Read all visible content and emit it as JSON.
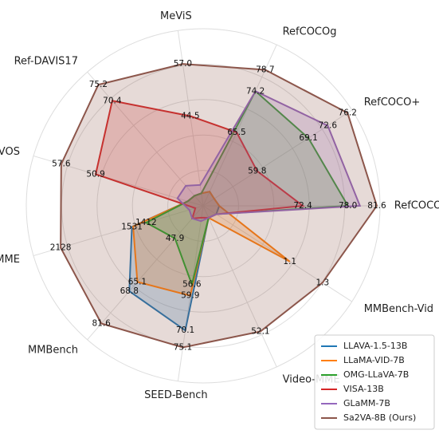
{
  "chart_data": {
    "type": "radar",
    "axes": [
      {
        "name": "RefCOCO",
        "lim": [
          60,
          82
        ]
      },
      {
        "name": "RefCOCO+",
        "lim": [
          50,
          77
        ]
      },
      {
        "name": "RefCOCOg",
        "lim": [
          50,
          84
        ]
      },
      {
        "name": "MeViS",
        "lim": [
          23,
          65
        ]
      },
      {
        "name": "Ref-DAVIS17",
        "lim": [
          39,
          79
        ]
      },
      {
        "name": "ReVOS",
        "lim": [
          30,
          63
        ]
      },
      {
        "name": "MME",
        "lim": [
          934,
          2356
        ]
      },
      {
        "name": "MMBench",
        "lim": [
          35,
          88
        ]
      },
      {
        "name": "SEED-Bench",
        "lim": [
          33.5,
          85
        ]
      },
      {
        "name": "Video-MME",
        "lim": [
          10,
          64
        ]
      },
      {
        "name": "MMBench-Vid",
        "lim": [
          0.57,
          1.48
        ]
      }
    ],
    "series": [
      {
        "name": "LLAVA-1.5-13B",
        "color": "#1f77b4",
        "values": [
          62,
          52,
          53,
          26,
          42,
          33,
          1531,
          68.8,
          70.1,
          14,
          0.65
        ],
        "value_labels": [
          null,
          null,
          null,
          null,
          null,
          null,
          "1531",
          "68.8",
          "70.1",
          null,
          null
        ]
      },
      {
        "name": "LLaMA-VID-7B",
        "color": "#ff7f0e",
        "values": [
          62,
          52,
          53,
          26,
          42,
          33,
          1521,
          65.1,
          59.9,
          14,
          1.1
        ],
        "value_labels": [
          null,
          null,
          null,
          null,
          null,
          null,
          null,
          "65.1",
          "59.9",
          null,
          "1.1"
        ]
      },
      {
        "name": "OMG-LLaVA-7B",
        "color": "#2ca02c",
        "values": [
          78.0,
          69.1,
          74.2,
          26,
          42,
          33,
          1412,
          47.9,
          56.6,
          14,
          0.65
        ],
        "value_labels": [
          "78.0",
          "69.1",
          "74.2",
          null,
          null,
          null,
          "1412",
          "47.9",
          "56.6",
          null,
          null
        ]
      },
      {
        "name": "VISA-13B",
        "color": "#d62728",
        "values": [
          72.4,
          59.8,
          65.5,
          44.5,
          70.4,
          50.9,
          1000,
          40,
          37,
          14,
          0.65
        ],
        "value_labels": [
          "72.4",
          "59.8",
          "65.5",
          "44.5",
          "70.4",
          "50.9",
          null,
          null,
          null,
          null,
          null
        ]
      },
      {
        "name": "GLaMM-7B",
        "color": "#9467bd",
        "values": [
          79.5,
          72.6,
          74.2,
          28,
          45,
          35,
          1050,
          40,
          38,
          14,
          0.65
        ],
        "value_labels": [
          null,
          "72.6",
          null,
          null,
          null,
          null,
          null,
          null,
          null,
          null,
          null
        ]
      },
      {
        "name": "Sa2VA-8B (Ours)",
        "color": "#8c564b",
        "values": [
          81.6,
          76.2,
          78.7,
          57.0,
          75.2,
          57.6,
          2128,
          81.6,
          75.1,
          52.1,
          1.3
        ],
        "value_labels": [
          "81.6",
          "76.2",
          "78.7",
          "57.0",
          "75.2",
          "57.6",
          "2128",
          "81.6",
          "75.1",
          "52.1",
          "1.3"
        ]
      }
    ],
    "legend": "lower right"
  }
}
